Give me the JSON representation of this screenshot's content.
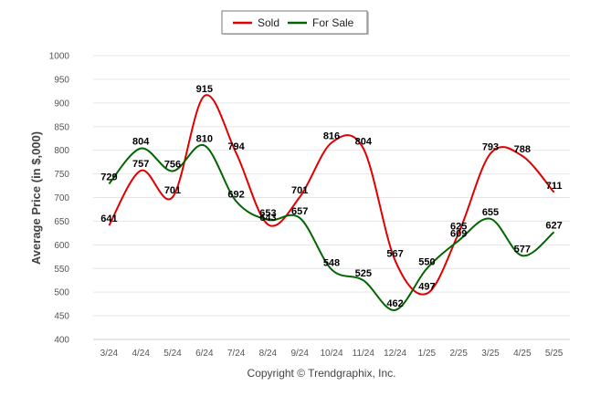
{
  "chart_data": {
    "type": "line",
    "categories": [
      "3/24",
      "4/24",
      "5/24",
      "6/24",
      "7/24",
      "8/24",
      "9/24",
      "10/24",
      "11/24",
      "12/24",
      "1/25",
      "2/25",
      "3/25",
      "4/25",
      "5/25"
    ],
    "series": [
      {
        "name": "Sold",
        "color": "#e00000",
        "values": [
          641,
          757,
          701,
          915,
          794,
          643,
          701,
          816,
          804,
          567,
          497,
          625,
          793,
          788,
          711
        ]
      },
      {
        "name": "For Sale",
        "color": "#006600",
        "values": [
          729,
          804,
          756,
          810,
          692,
          653,
          657,
          548,
          525,
          462,
          550,
          609,
          655,
          577,
          627
        ]
      }
    ],
    "ylabel": "Average Price (in $,000)",
    "ylim": [
      400,
      1000
    ],
    "yticks": [
      400,
      450,
      500,
      550,
      600,
      650,
      700,
      750,
      800,
      850,
      900,
      950,
      1000
    ],
    "grid": true,
    "legend_position": "top-center",
    "footer": "Copyright © Trendgraphix, Inc."
  }
}
